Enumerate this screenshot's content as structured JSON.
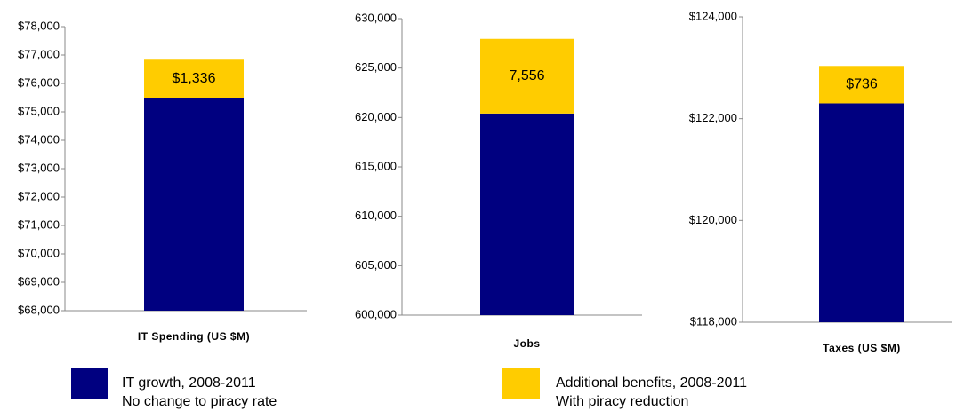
{
  "chart_data": [
    {
      "type": "bar",
      "xlabel": "IT Spending (US $M)",
      "series": [
        {
          "color": "#000080",
          "values": [
            75500
          ]
        },
        {
          "color": "#ffcc00",
          "values": [
            1336
          ],
          "value_labels": [
            "$1,336"
          ]
        }
      ],
      "ylim": [
        68000,
        78000
      ],
      "yticks": [
        {
          "value": 68000,
          "label": "$68,000"
        },
        {
          "value": 69000,
          "label": "$69,000"
        },
        {
          "value": 70000,
          "label": "$70,000"
        },
        {
          "value": 71000,
          "label": "$71,000"
        },
        {
          "value": 72000,
          "label": "$72,000"
        },
        {
          "value": 73000,
          "label": "$73,000"
        },
        {
          "value": 74000,
          "label": "$74,000"
        },
        {
          "value": 75000,
          "label": "$75,000"
        },
        {
          "value": 76000,
          "label": "$76,000"
        },
        {
          "value": 77000,
          "label": "$77,000"
        },
        {
          "value": 78000,
          "label": "$78,000"
        }
      ]
    },
    {
      "type": "bar",
      "xlabel": "Jobs",
      "series": [
        {
          "color": "#000080",
          "values": [
            620400
          ]
        },
        {
          "color": "#ffcc00",
          "values": [
            7556
          ],
          "value_labels": [
            "7,556"
          ]
        }
      ],
      "ylim": [
        600000,
        630000
      ],
      "yticks": [
        {
          "value": 600000,
          "label": "600,000"
        },
        {
          "value": 605000,
          "label": "605,000"
        },
        {
          "value": 610000,
          "label": "610,000"
        },
        {
          "value": 615000,
          "label": "615,000"
        },
        {
          "value": 620000,
          "label": "620,000"
        },
        {
          "value": 625000,
          "label": "625,000"
        },
        {
          "value": 630000,
          "label": "630,000"
        }
      ]
    },
    {
      "type": "bar",
      "xlabel": "Taxes (US $M)",
      "series": [
        {
          "color": "#000080",
          "values": [
            122300
          ]
        },
        {
          "color": "#ffcc00",
          "values": [
            736
          ],
          "value_labels": [
            "$736"
          ]
        }
      ],
      "ylim": [
        118000,
        124000
      ],
      "yticks": [
        {
          "value": 118000,
          "label": "$118,000"
        },
        {
          "value": 120000,
          "label": "$120,000"
        },
        {
          "value": 122000,
          "label": "$122,000"
        },
        {
          "value": 124000,
          "label": "$124,000"
        }
      ]
    }
  ],
  "legend": [
    {
      "label": "IT growth, 2008-2011",
      "sublabel": "No change to piracy rate"
    },
    {
      "label": "Additional benefits, 2008-2011",
      "sublabel": "With piracy reduction"
    }
  ]
}
